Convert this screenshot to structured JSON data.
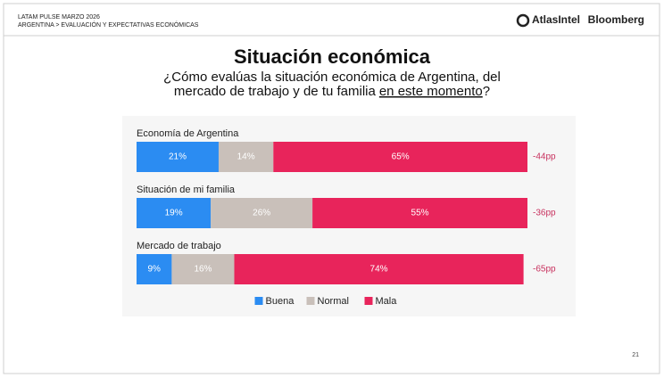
{
  "header": {
    "report": "LATAM PULSE MARZO 2026",
    "section": "ARGENTINA > EVALUACIÓN Y EXPECTATIVAS ECONÓMICAS",
    "logo_left": "AtlasIntel",
    "logo_right": "Bloomberg"
  },
  "chart_data": {
    "type": "stacked-bar-horizontal",
    "title": "Situación económica",
    "subtitle": {
      "line1": "¿Cómo evalúas la situación económica de Argentina, del",
      "line2": "mercado de trabajo y de tu familia",
      "emphasis": "en este momento",
      "end": "?"
    },
    "categories": [
      "Economía de Argentina",
      "Situación de mi familia",
      "Mercado de trabajo"
    ],
    "xlim": [
      0,
      100
    ],
    "series": [
      {
        "name": "Buena",
        "color": "#2b8cf2",
        "values": [
          21,
          19,
          9
        ],
        "value_labels": [
          "21%",
          "19%",
          "9%"
        ]
      },
      {
        "name": "Normal",
        "color": "#c9c0ba",
        "values": [
          14,
          26,
          16
        ],
        "value_labels": [
          "14%",
          "26%",
          "16%"
        ]
      },
      {
        "name": "Mala",
        "color": "#e8245b",
        "values": [
          65,
          55,
          74
        ],
        "value_labels": [
          "65%",
          "55%",
          "74%"
        ]
      }
    ],
    "annotations": [
      "-44pp",
      "-36pp",
      "-65pp"
    ],
    "annotation_color": "#c8325f",
    "legend": "bottom"
  },
  "footer": {
    "page": "21"
  }
}
